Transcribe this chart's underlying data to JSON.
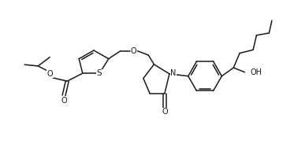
{
  "bg_color": "#ffffff",
  "line_color": "#1a1a1a",
  "line_width": 1.1,
  "font_size": 7.0,
  "figsize": [
    3.73,
    1.97
  ],
  "dpi": 100,
  "xlim": [
    0,
    10.5
  ],
  "ylim": [
    0,
    5.5
  ]
}
